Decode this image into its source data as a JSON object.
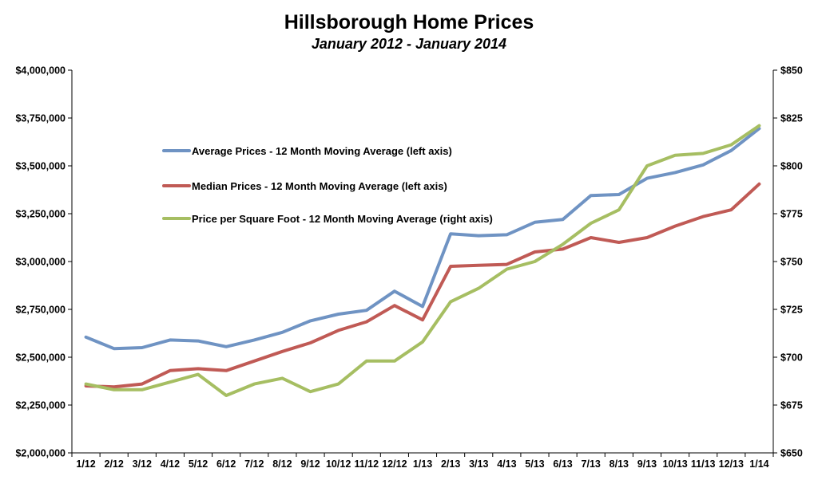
{
  "chart_data": {
    "type": "line",
    "title": "Hillsborough Home Prices",
    "subtitle": "January 2012 - January 2014",
    "categories": [
      "1/12",
      "2/12",
      "3/12",
      "4/12",
      "5/12",
      "6/12",
      "7/12",
      "8/12",
      "9/12",
      "10/12",
      "11/12",
      "12/12",
      "1/13",
      "2/13",
      "3/13",
      "4/13",
      "5/13",
      "6/13",
      "7/13",
      "8/13",
      "9/13",
      "10/13",
      "11/13",
      "12/13",
      "1/14"
    ],
    "left_axis": {
      "ylim": [
        2000000,
        4000000
      ],
      "ticks": [
        2000000,
        2250000,
        2500000,
        2750000,
        3000000,
        3250000,
        3500000,
        3750000,
        4000000
      ],
      "tick_labels": [
        "$2,000,000",
        "$2,250,000",
        "$2,500,000",
        "$2,750,000",
        "$3,000,000",
        "$3,250,000",
        "$3,500,000",
        "$3,750,000",
        "$4,000,000"
      ]
    },
    "right_axis": {
      "ylim": [
        650,
        850
      ],
      "ticks": [
        650,
        675,
        700,
        725,
        750,
        775,
        800,
        825,
        850
      ],
      "tick_labels": [
        "$650",
        "$675",
        "$700",
        "$725",
        "$750",
        "$775",
        "$800",
        "$825",
        "$850"
      ]
    },
    "grid": false,
    "legend_position": "upper-left-inside",
    "series": [
      {
        "name": "Average Prices - 12 Month Moving Average (left axis)",
        "axis": "left",
        "color": "#6f93c3",
        "values": [
          2605000,
          2545000,
          2550000,
          2590000,
          2585000,
          2555000,
          2590000,
          2630000,
          2690000,
          2725000,
          2745000,
          2845000,
          2765000,
          3145000,
          3135000,
          3140000,
          3205000,
          3220000,
          3345000,
          3350000,
          3435000,
          3465000,
          3505000,
          3580000,
          3695000
        ]
      },
      {
        "name": "Median Prices - 12 Month Moving Average (left axis)",
        "axis": "left",
        "color": "#c05a55",
        "values": [
          2350000,
          2345000,
          2360000,
          2430000,
          2440000,
          2430000,
          2480000,
          2530000,
          2575000,
          2640000,
          2685000,
          2770000,
          2695000,
          2975000,
          2980000,
          2985000,
          3050000,
          3065000,
          3125000,
          3100000,
          3125000,
          3185000,
          3235000,
          3270000,
          3405000
        ]
      },
      {
        "name": "Price per Square Foot - 12 Month Moving Average (right axis)",
        "axis": "right",
        "color": "#a6be62",
        "values": [
          686,
          683,
          683,
          687,
          691,
          680,
          686,
          689,
          682,
          686,
          698,
          698,
          708,
          729,
          736,
          746,
          750,
          759,
          770,
          777,
          800,
          805.5,
          806.5,
          811,
          821
        ]
      }
    ]
  }
}
